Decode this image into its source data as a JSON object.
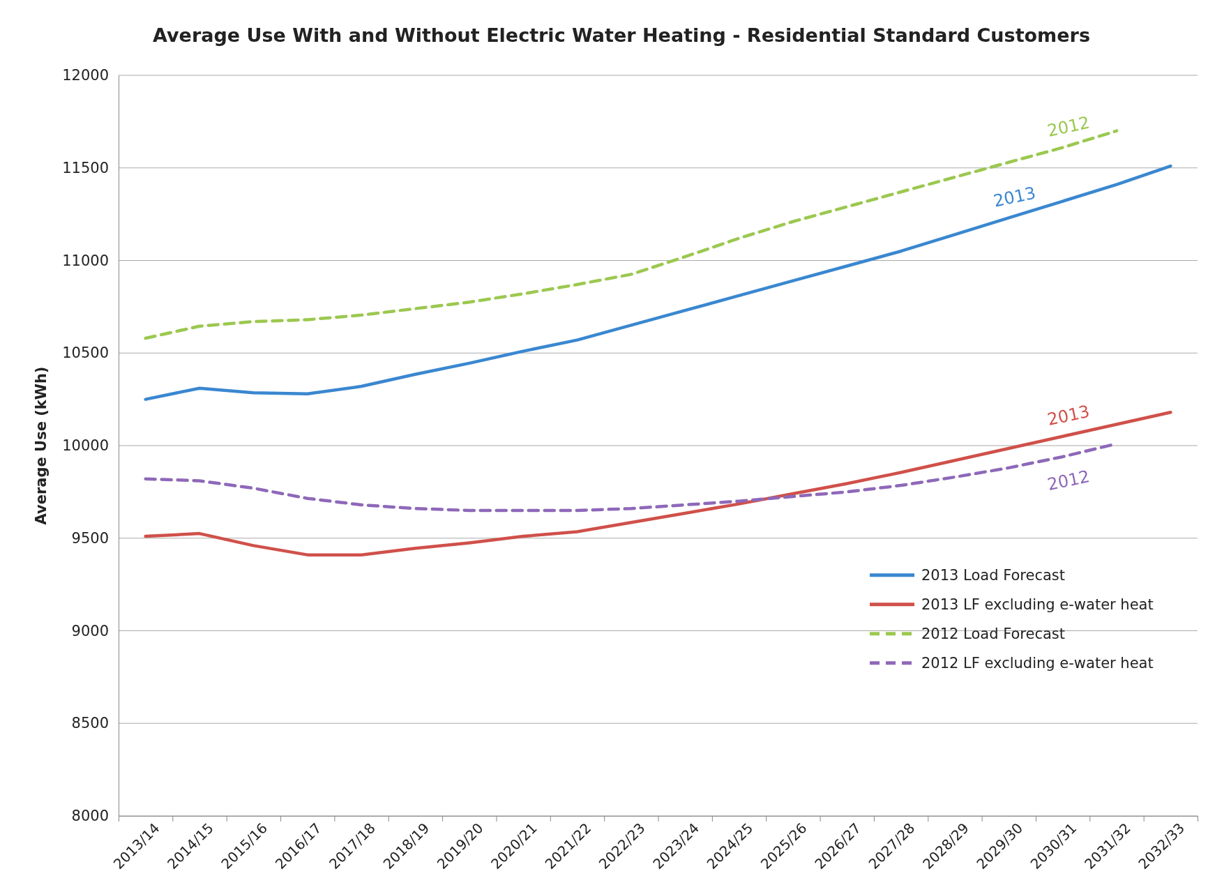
{
  "chart_data": {
    "type": "line",
    "title": "Average Use With and Without Electric Water Heating - Residential Standard Customers",
    "ylabel": "Average Use (kWh)",
    "categories": [
      "2013/14",
      "2014/15",
      "2015/16",
      "2016/17",
      "2017/18",
      "2018/19",
      "2019/20",
      "2020/21",
      "2021/22",
      "2022/23",
      "2023/24",
      "2024/25",
      "2025/26",
      "2026/27",
      "2027/28",
      "2028/29",
      "2029/30",
      "2030/31",
      "2031/32",
      "2032/33"
    ],
    "series": [
      {
        "name": "2013 Load Forecast",
        "color": "#3a87d0",
        "line_style": "solid",
        "values": [
          10250,
          10310,
          10285,
          10280,
          10320,
          10385,
          10445,
          10510,
          10570,
          10650,
          10730,
          10810,
          10890,
          10970,
          11050,
          11140,
          11230,
          11320,
          11410,
          11510
        ]
      },
      {
        "name": "2013 LF excluding e-water heat",
        "color": "#d0504a",
        "line_style": "solid",
        "values": [
          9510,
          9525,
          9460,
          9410,
          9410,
          9445,
          9475,
          9510,
          9535,
          9585,
          9635,
          9685,
          9740,
          9795,
          9855,
          9920,
          9985,
          10050,
          10115,
          10180
        ]
      },
      {
        "name": "2012 Load Forecast",
        "color": "#9bc84f",
        "line_style": "dashed",
        "values": [
          10580,
          10645,
          10670,
          10680,
          10705,
          10740,
          10775,
          10820,
          10870,
          10925,
          11020,
          11120,
          11210,
          11290,
          11370,
          11450,
          11530,
          11610,
          11700,
          null
        ]
      },
      {
        "name": "2012 LF excluding e-water heat",
        "color": "#8e68b9",
        "line_style": "dashed",
        "values": [
          9820,
          9810,
          9770,
          9715,
          9680,
          9660,
          9650,
          9650,
          9650,
          9660,
          9680,
          9700,
          9725,
          9750,
          9785,
          9830,
          9880,
          9940,
          10010,
          null
        ]
      }
    ],
    "annotations": [
      {
        "text": "2012",
        "x": "2030/31",
        "y": 11610
      },
      {
        "text": "2013",
        "x": "2029/30",
        "y": 11230
      },
      {
        "text": "2013",
        "x": "2030/31",
        "y": 10050
      },
      {
        "text": "2012",
        "x": "2030/31",
        "y": 9940
      }
    ],
    "ylim": [
      8000,
      12000
    ],
    "yticks": [
      8000,
      8500,
      9000,
      9500,
      10000,
      10500,
      11000,
      11500,
      12000
    ],
    "grid": "y",
    "legend": "bottom right",
    "marker": "none"
  }
}
